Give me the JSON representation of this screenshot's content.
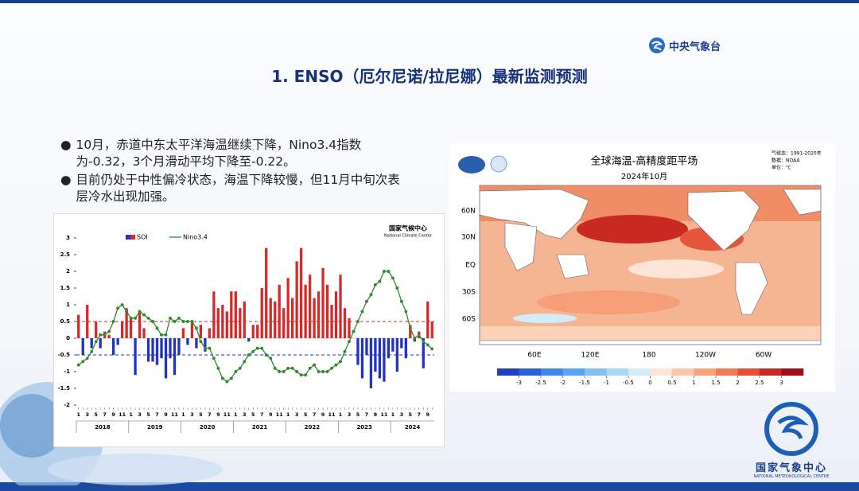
{
  "header": {
    "logo_text": "中央气象台",
    "title": "1. ENSO（厄尔尼诺/拉尼娜）最新监测预测"
  },
  "bullets": [
    "10月，赤道中东太平洋海温继续下降，Nino3.4指数为-0.32，3个月滑动平均下降至-0.22。",
    "目前仍处于中性偏冷状态，海温下降较慢，但11月中旬次表层冷水出现加强。"
  ],
  "chart_data": {
    "type": "bar_line",
    "logo_text": "国家气候中心",
    "logo_subtext": "National Climate Center",
    "categories": [
      "1",
      null,
      "3",
      null,
      "5",
      null,
      "7",
      null,
      "9",
      null,
      "11",
      null,
      "1",
      null,
      "3",
      null,
      "5",
      null,
      "7",
      null,
      "9",
      null,
      "11",
      null,
      "1",
      null,
      "3",
      null,
      "5",
      null,
      "7",
      null,
      "9",
      null,
      "11",
      null,
      "1",
      null,
      "3",
      null,
      "5",
      null,
      "7",
      null,
      "9",
      null,
      "11",
      null,
      "1",
      null,
      "3",
      null,
      "5",
      null,
      "7",
      null,
      "9",
      null,
      "11",
      null,
      "1",
      null,
      "3",
      null,
      "5",
      null,
      "7",
      null,
      "9",
      null,
      "11",
      null,
      "1",
      null,
      "3",
      null,
      "5",
      null,
      "7",
      null,
      "9",
      null
    ],
    "years": [
      "2018",
      "2019",
      "2020",
      "2021",
      "2022",
      "2023",
      "2024"
    ],
    "series": [
      {
        "name": "SOI",
        "type": "bar",
        "colors": {
          "positive": "#d42a2a",
          "negative": "#2233c0"
        },
        "values": [
          0.7,
          -0.5,
          1.0,
          -0.3,
          0.5,
          -0.3,
          0.2,
          0.1,
          -0.5,
          -0.2,
          0.5,
          0.9,
          0.6,
          -1.1,
          0.8,
          0.3,
          -0.7,
          -0.7,
          -0.8,
          -0.6,
          -1.2,
          -0.6,
          -1.1,
          -0.5,
          0.3,
          -0.2,
          0.5,
          -0.3,
          0.4,
          -0.4,
          0.3,
          1.4,
          0.9,
          1.0,
          0.8,
          1.4,
          1.4,
          0.9,
          1.1,
          -0.1,
          0.4,
          0.4,
          1.5,
          2.7,
          1.2,
          1.1,
          1.6,
          0.9,
          1.8,
          1.2,
          2.3,
          2.7,
          1.6,
          1.9,
          1.2,
          1.4,
          2.1,
          1.6,
          1.0,
          1.4,
          1.9,
          0.9,
          0.6,
          0.0,
          -0.8,
          -1.2,
          -0.5,
          -1.5,
          -1.0,
          -1.2,
          -1.3,
          -0.6,
          -0.4,
          -1.0,
          -0.3,
          -0.6,
          0.4,
          -0.1,
          0.2,
          -0.9,
          1.1,
          0.5
        ]
      },
      {
        "name": "Nino3.4",
        "type": "line",
        "color": "#2e8b2e",
        "values": [
          -0.8,
          -0.7,
          -0.6,
          -0.4,
          -0.1,
          0.1,
          0.1,
          0.2,
          0.5,
          0.9,
          1.0,
          0.8,
          0.6,
          0.6,
          0.8,
          0.7,
          0.6,
          0.5,
          0.3,
          0.1,
          0.1,
          0.6,
          0.5,
          0.6,
          0.5,
          0.5,
          0.5,
          0.3,
          -0.1,
          -0.3,
          -0.3,
          -0.6,
          -0.9,
          -1.2,
          -1.3,
          -1.2,
          -1.0,
          -0.9,
          -0.7,
          -0.5,
          -0.4,
          -0.3,
          -0.3,
          -0.5,
          -0.6,
          -0.9,
          -1.0,
          -1.0,
          -0.9,
          -0.9,
          -1.0,
          -1.1,
          -1.1,
          -0.9,
          -0.8,
          -1.0,
          -1.0,
          -1.0,
          -0.9,
          -0.8,
          -0.7,
          -0.4,
          -0.1,
          0.2,
          0.5,
          0.8,
          1.1,
          1.3,
          1.6,
          1.7,
          2.0,
          2.0,
          1.8,
          1.5,
          1.1,
          0.8,
          0.3,
          0.0,
          0.1,
          -0.1,
          -0.2,
          -0.32
        ]
      }
    ],
    "reference_lines": [
      {
        "value": 0.5,
        "color": "#c03030"
      },
      {
        "value": -0.5,
        "color": "#2030c0"
      }
    ],
    "ylim": [
      -2,
      3
    ],
    "yticks": [
      -2,
      -1.5,
      -1,
      -0.5,
      0,
      0.5,
      1,
      1.5,
      2,
      2.5,
      3
    ]
  },
  "map": {
    "title": "全球海温-高精度距平场",
    "subtitle": "2024年10月",
    "notes": [
      "气候态：1991-2020年",
      "数据：NOAA",
      "单位：℃"
    ],
    "lat_labels": [
      "60N",
      "30N",
      "EQ",
      "30S",
      "60S"
    ],
    "lon_labels": [
      "60E",
      "120E",
      "180",
      "120W",
      "60W"
    ],
    "colorbar": {
      "ticks": [
        -3,
        -2.5,
        -2,
        -1.5,
        -1,
        -0.5,
        0,
        0.5,
        1,
        1.5,
        2,
        2.5,
        3
      ],
      "colors": [
        "#1f3fbf",
        "#2a62d6",
        "#3d85e6",
        "#5aa3f0",
        "#7fc0f5",
        "#a9d8f7",
        "#d3ecf8",
        "#fde4d6",
        "#fbc7a8",
        "#f7a47b",
        "#ef7a55",
        "#e04f37",
        "#c52a22",
        "#9e0f18"
      ]
    }
  },
  "footer": {
    "logo_text": "国家气象中心",
    "logo_subtext": "NATIONAL METEOROLOGICAL CENTRE"
  }
}
